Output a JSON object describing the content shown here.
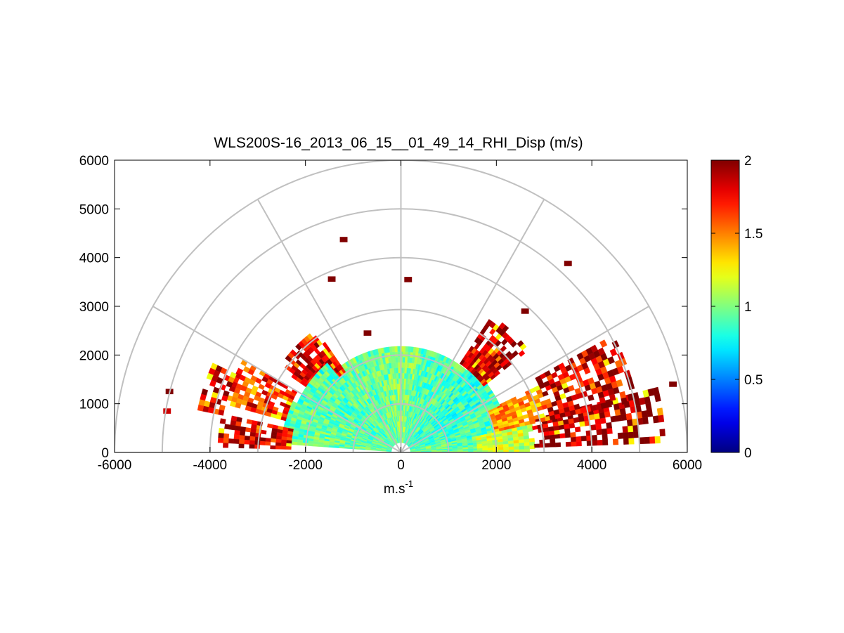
{
  "chart_data": {
    "type": "heatmap",
    "subtype": "polar-rhi-scan",
    "title": "WLS200S-16_2013_06_15__01_49_14_RHI_Disp (m/s)",
    "xlabel": "m.s",
    "xlabel_superscript": "-1",
    "ylabel": "",
    "xlim": [
      -6000,
      6000
    ],
    "ylim": [
      0,
      6000
    ],
    "x_ticks": [
      -6000,
      -4000,
      -2000,
      0,
      2000,
      4000,
      6000
    ],
    "x_tick_labels": [
      "-6000",
      "-4000",
      "-2000",
      "0",
      "2000",
      "4000",
      "6000"
    ],
    "y_ticks": [
      0,
      1000,
      2000,
      3000,
      4000,
      5000,
      6000
    ],
    "y_tick_labels": [
      "0",
      "1000",
      "2000",
      "3000",
      "4000",
      "5000",
      "6000"
    ],
    "polar_grid": {
      "range_rings_m": [
        1000,
        2000,
        3000,
        4000,
        5000,
        6000
      ],
      "spokes_deg": [
        0,
        30,
        60,
        90,
        120,
        150,
        180
      ]
    },
    "colorbar": {
      "colormap": "jet",
      "range": [
        0,
        2
      ],
      "ticks": [
        0,
        0.5,
        1,
        1.5,
        2
      ],
      "tick_labels": [
        "0",
        "0.5",
        "1",
        "1.5",
        "2"
      ]
    },
    "data_description": "Dispersion of radial velocity (m/s) by elevation angle and range",
    "sectors": [
      {
        "az_from": 0,
        "az_to": 12,
        "r_from": 200,
        "r_to": 1600,
        "value": 0.95
      },
      {
        "az_from": 0,
        "az_to": 12,
        "r_from": 1600,
        "r_to": 2800,
        "value": 1.15
      },
      {
        "az_from": 2,
        "az_to": 14,
        "r_from": 2800,
        "r_to": 5500,
        "value": 1.95
      },
      {
        "az_from": 12,
        "az_to": 25,
        "r_from": 200,
        "r_to": 2000,
        "value": 0.9
      },
      {
        "az_from": 12,
        "az_to": 25,
        "r_from": 2000,
        "r_to": 3200,
        "value": 1.45
      },
      {
        "az_from": 12,
        "az_to": 28,
        "r_from": 3200,
        "r_to": 5000,
        "value": 1.9
      },
      {
        "az_from": 25,
        "az_to": 50,
        "r_from": 200,
        "r_to": 2200,
        "value": 0.85
      },
      {
        "az_from": 38,
        "az_to": 55,
        "r_from": 2200,
        "r_to": 3400,
        "value": 1.9
      },
      {
        "az_from": 50,
        "az_to": 80,
        "r_from": 200,
        "r_to": 2100,
        "value": 0.9
      },
      {
        "az_from": 80,
        "az_to": 100,
        "r_from": 200,
        "r_to": 2150,
        "value": 1.0
      },
      {
        "az_from": 100,
        "az_to": 130,
        "r_from": 200,
        "r_to": 2100,
        "value": 0.95
      },
      {
        "az_from": 125,
        "az_to": 145,
        "r_from": 2000,
        "r_to": 3000,
        "value": 1.85
      },
      {
        "az_from": 130,
        "az_to": 155,
        "r_from": 200,
        "r_to": 2300,
        "value": 0.9
      },
      {
        "az_from": 155,
        "az_to": 175,
        "r_from": 200,
        "r_to": 2500,
        "value": 0.95
      },
      {
        "az_from": 150,
        "az_to": 165,
        "r_from": 2500,
        "r_to": 3800,
        "value": 1.7
      },
      {
        "az_from": 155,
        "az_to": 168,
        "r_from": 3800,
        "r_to": 4300,
        "value": 1.95
      },
      {
        "az_from": 168,
        "az_to": 178,
        "r_from": 2300,
        "r_to": 3800,
        "value": 1.85
      }
    ],
    "isolated_cells": [
      {
        "x": -1200,
        "y": 4370,
        "value": 2.0
      },
      {
        "x": 3500,
        "y": 3880,
        "value": 2.0
      },
      {
        "x": -1450,
        "y": 3560,
        "value": 2.0
      },
      {
        "x": 150,
        "y": 3550,
        "value": 2.0
      },
      {
        "x": 2600,
        "y": 2900,
        "value": 2.0
      },
      {
        "x": -700,
        "y": 2450,
        "value": 2.0
      },
      {
        "x": -4850,
        "y": 1250,
        "value": 2.0
      },
      {
        "x": -4900,
        "y": 850,
        "value": 1.85
      },
      {
        "x": 5700,
        "y": 1400,
        "value": 2.0
      }
    ]
  }
}
